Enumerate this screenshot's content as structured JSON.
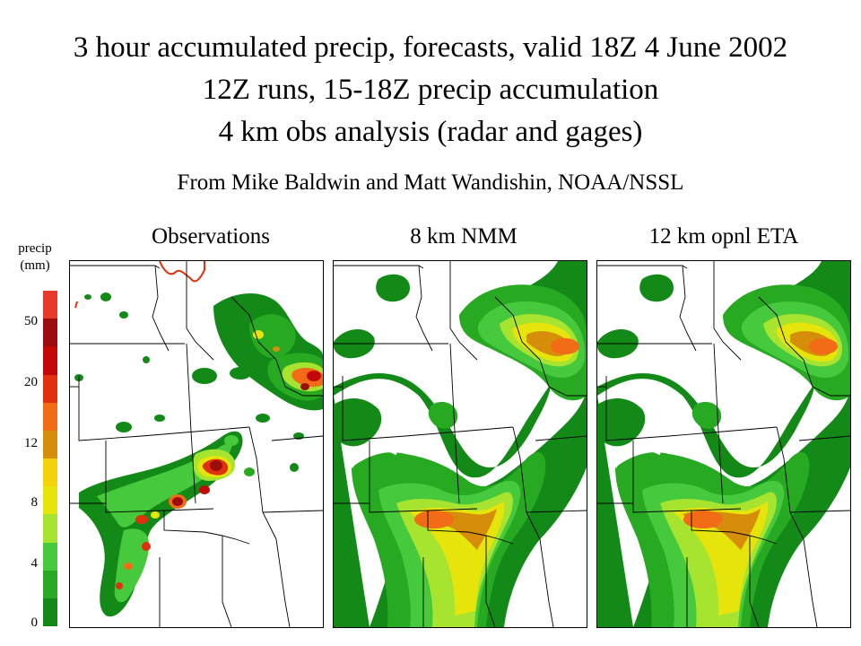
{
  "title": {
    "line1": "3 hour accumulated precip, forecasts, valid 18Z 4 June 2002",
    "line2": "12Z runs, 15-18Z precip accumulation",
    "line3": "4 km obs analysis (radar and gages)"
  },
  "credit": "From Mike Baldwin and Matt Wandishin, NOAA/NSSL",
  "panels": [
    {
      "label": "Observations",
      "field": "obs"
    },
    {
      "label": "8 km NMM",
      "field": "nmm"
    },
    {
      "label": "12 km opnl ETA",
      "field": "eta"
    }
  ],
  "legend": {
    "title_line1": "precip",
    "title_line2": "(mm)",
    "ticks": [
      "50",
      "20",
      "12",
      "8",
      "4",
      "0"
    ],
    "colors": [
      "#e83a2a",
      "#9c0d0d",
      "#c30808",
      "#e1300e",
      "#f26b17",
      "#d68d09",
      "#f3d20a",
      "#e7e40b",
      "#a6e42f",
      "#46c93c",
      "#27aa22",
      "#138a17"
    ]
  }
}
